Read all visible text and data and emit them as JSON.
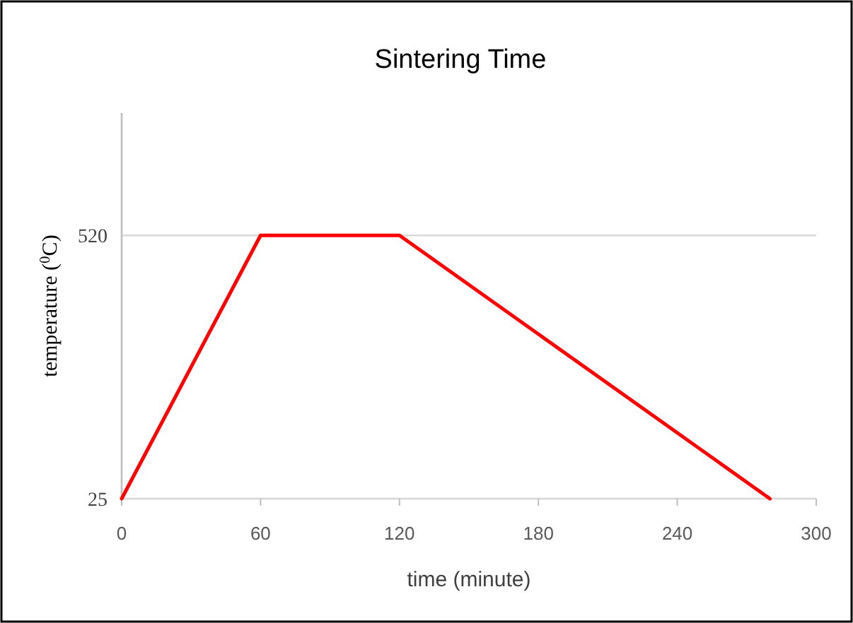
{
  "chart_data": {
    "type": "line",
    "title": "Sintering Time",
    "xlabel": "time (minute)",
    "ylabel": "temperature ($^{0}$C)",
    "x": [
      0,
      60,
      120,
      280
    ],
    "series": [
      {
        "color": "#ff0000",
        "values": [
          25,
          520,
          520,
          25
        ]
      }
    ],
    "xlim": [
      0,
      300
    ],
    "xticks": [
      0,
      60,
      120,
      180,
      240,
      300
    ],
    "ylim": [
      25,
      750
    ],
    "yticks": [
      25,
      520
    ],
    "grid": "y",
    "marker": "none",
    "line_style": "solid"
  }
}
